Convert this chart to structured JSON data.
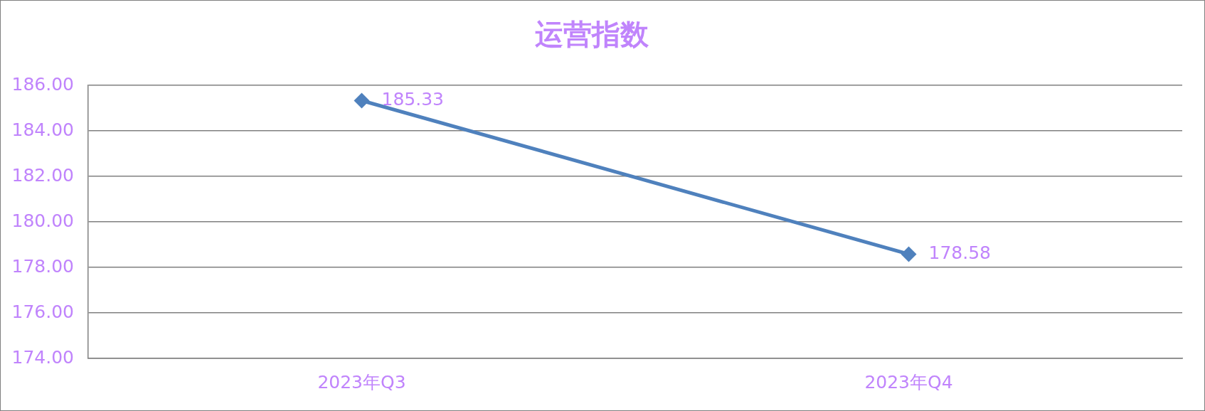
{
  "chart_data": {
    "type": "line",
    "title": "运营指数",
    "categories": [
      "2023年Q3",
      "2023年Q4"
    ],
    "series": [
      {
        "color": "#4f81bd",
        "values": [
          185.33,
          178.58
        ]
      }
    ],
    "ylim": [
      174,
      186
    ],
    "yticks": [
      {
        "value": 174,
        "label": "174.00"
      },
      {
        "value": 176,
        "label": "176.00"
      },
      {
        "value": 178,
        "label": "178.00"
      },
      {
        "value": 180,
        "label": "180.00"
      },
      {
        "value": 182,
        "label": "182.00"
      },
      {
        "value": 184,
        "label": "184.00"
      },
      {
        "value": 186,
        "label": "186.00"
      }
    ],
    "grid": "y",
    "marker": "diamond",
    "data_labels": true
  }
}
